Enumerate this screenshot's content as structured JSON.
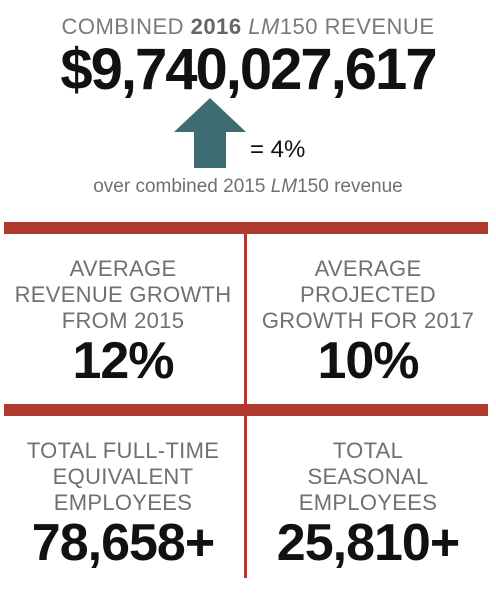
{
  "header": {
    "prefix": "COMBINED ",
    "year": "2016",
    "space": " ",
    "brand": "LM",
    "suffix": "150 REVENUE"
  },
  "revenue": {
    "value": "$9,740,027,617",
    "growth": "= 4%"
  },
  "comparison": {
    "prefix": "over combined 2015 ",
    "brand": "LM",
    "suffix": "150 revenue"
  },
  "stats": {
    "avg_growth": {
      "label_lines": [
        "AVERAGE",
        "REVENUE GROWTH",
        "FROM 2015"
      ],
      "value": "12%"
    },
    "projected_growth": {
      "label_lines": [
        "AVERAGE",
        "PROJECTED",
        "GROWTH FOR 2017"
      ],
      "value": "10%"
    },
    "fte": {
      "label_lines": [
        "TOTAL FULL-TIME",
        "EQUIVALENT",
        "EMPLOYEES"
      ],
      "value": "78,658+"
    },
    "seasonal": {
      "label_lines": [
        "TOTAL",
        "SEASONAL",
        "EMPLOYEES"
      ],
      "value": "25,810+"
    }
  },
  "colors": {
    "accent": "#b03a2e",
    "arrow": "#3d6c73",
    "label_gray": "#707070"
  },
  "icons": {
    "arrow": "up-arrow-icon"
  }
}
